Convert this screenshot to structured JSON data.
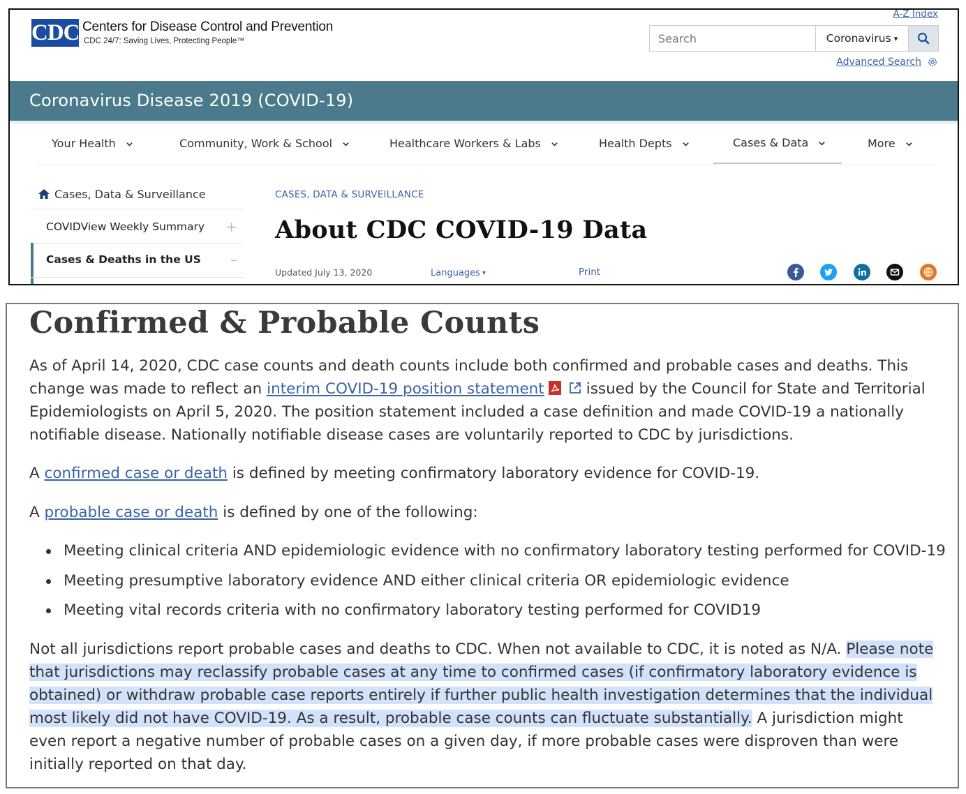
{
  "header": {
    "logo_text": "CDC",
    "org_name": "Centers for Disease Control and Prevention",
    "tagline": "CDC 24/7: Saving Lives, Protecting People™",
    "az_index": "A-Z Index",
    "search_placeholder": "Search",
    "search_scope": "Coronavirus",
    "advanced_search": "Advanced Search",
    "brand_color": "#1a4ca1"
  },
  "banner": {
    "title": "Coronavirus Disease 2019 (COVID-19)",
    "color": "#4b7a8c"
  },
  "nav": {
    "items": [
      {
        "label": "Your Health"
      },
      {
        "label": "Community, Work & School"
      },
      {
        "label": "Healthcare Workers & Labs"
      },
      {
        "label": "Health Depts"
      },
      {
        "label": "Cases & Data"
      },
      {
        "label": "More"
      }
    ],
    "active": "Cases & Data"
  },
  "sidebar": {
    "home": "Cases, Data & Surveillance",
    "items": [
      {
        "label": "COVIDView Weekly Summary",
        "expander": "+"
      },
      {
        "label": "Cases & Deaths in the US",
        "expander": "–"
      }
    ]
  },
  "page": {
    "breadcrumb": "CASES, DATA & SURVEILLANCE",
    "title": "About CDC COVID-19 Data",
    "updated": "Updated July 13, 2020",
    "languages": "Languages",
    "print": "Print",
    "social_icons": [
      "facebook-icon",
      "twitter-icon",
      "linkedin-icon",
      "email-icon",
      "syndicate-icon"
    ]
  },
  "content": {
    "title": "Confirmed & Probable Counts",
    "p1_a": "As of April 14, 2020, CDC case counts and death counts include both confirmed and probable cases and deaths. This change was made to reflect an ",
    "p1_link": "interim COVID-19 position statement",
    "p1_b": "issued by the Council for State and Territorial Epidemiologists on April 5, 2020. The position statement included a case definition and made COVID-19 a nationally notifiable disease. Nationally notifiable disease cases are voluntarily reported to CDC by jurisdictions.",
    "p2_a": "A ",
    "p2_link": "confirmed case or death",
    "p2_b": " is defined by meeting confirmatory laboratory evidence for COVID-19.",
    "p3_a": "A ",
    "p3_link": "probable case or death",
    "p3_b": " is defined by one of the following:",
    "bullets": [
      "Meeting clinical criteria AND epidemiologic evidence with no confirmatory laboratory testing performed for COVID-19",
      "Meeting presumptive laboratory evidence AND either clinical criteria OR epidemiologic evidence",
      "Meeting vital records criteria with no confirmatory laboratory testing performed for COVID19"
    ],
    "p4_a": "Not all jurisdictions report probable cases and deaths to CDC. When not available to CDC, it is noted as N/A. ",
    "p4_highlight": "Please note that jurisdictions may reclassify probable cases at any time to confirmed cases (if confirmatory laboratory evidence is obtained) or withdraw probable case reports entirely if further public health investigation determines that the individual most likely did not have COVID-19. As a result, probable case counts can fluctuate substantially.",
    "p4_b": " A jurisdiction might even report a negative number of probable cases on a given day, if more probable cases were disproven than were initially reported on that day.",
    "link_color": "#3a63a8",
    "highlight_color": "#d3e2fb"
  }
}
